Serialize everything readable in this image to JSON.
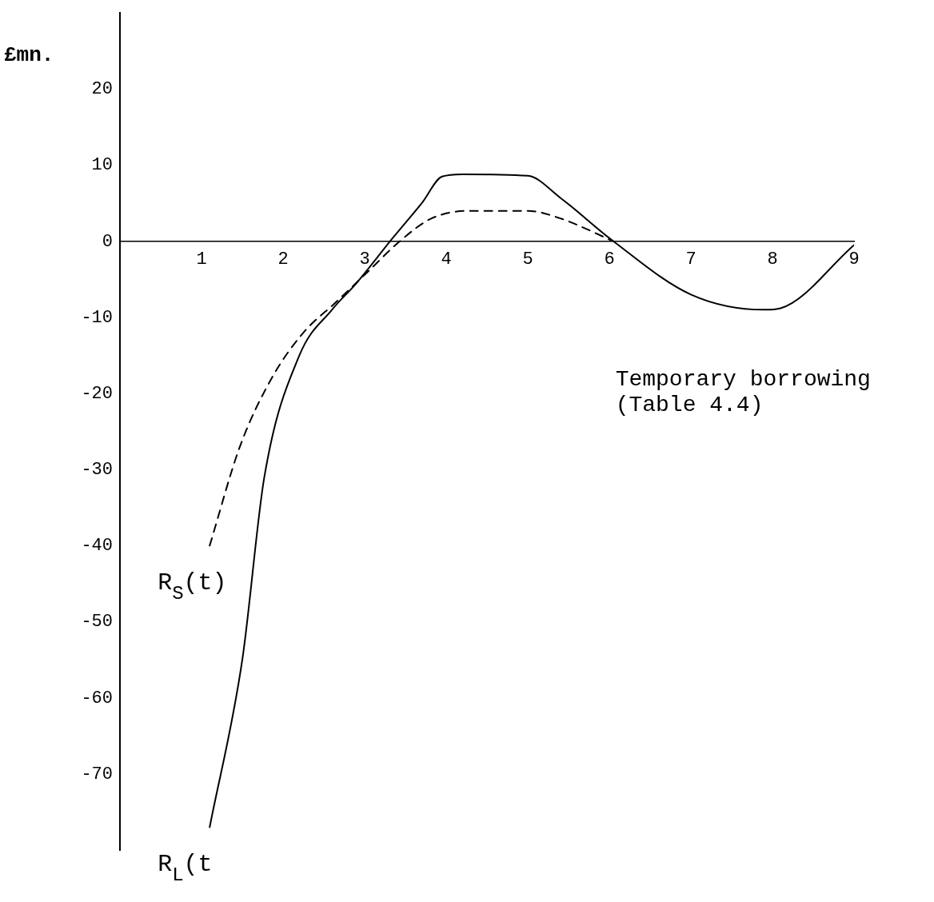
{
  "chart_data": {
    "type": "line",
    "ylabel": "£mn.",
    "xlim": [
      0,
      9
    ],
    "xticks": [
      1,
      2,
      3,
      4,
      5,
      6,
      7,
      8,
      9
    ],
    "ylim": [
      -80,
      30
    ],
    "yticks": [
      -70,
      -60,
      -50,
      -40,
      -30,
      -20,
      -10,
      0,
      10,
      20
    ],
    "grid": false,
    "legend": false,
    "marker": "none",
    "series": [
      {
        "name": "R$_{L}$(t",
        "color": "#000000",
        "line_style": "solid",
        "x": [
          1.1,
          1.5,
          1.77,
          2.2,
          2.6,
          2.9,
          3.35,
          3.7,
          3.95,
          4.2,
          5.0,
          5.4,
          6.05,
          7.0,
          7.9,
          8.1,
          9.0
        ],
        "values": [
          -77,
          -55,
          -31,
          -15,
          -9,
          -5.5,
          0.5,
          5,
          8.5,
          8.8,
          8.6,
          5.7,
          0,
          -7,
          -9,
          -8.8,
          -0.5
        ]
      },
      {
        "name": "R$_{S}$(t)",
        "color": "#000000",
        "line_style": "dashed",
        "x": [
          1.1,
          1.47,
          1.86,
          2.25,
          2.65,
          3.04,
          3.43,
          3.82,
          4.3,
          5.0,
          5.4,
          6.05
        ],
        "values": [
          -40,
          -27,
          -18,
          -12,
          -8,
          -4,
          0,
          3,
          4,
          4,
          3,
          0
        ]
      }
    ],
    "annotations": [
      "Temporary borrowing\n(Table 4.4)"
    ]
  }
}
